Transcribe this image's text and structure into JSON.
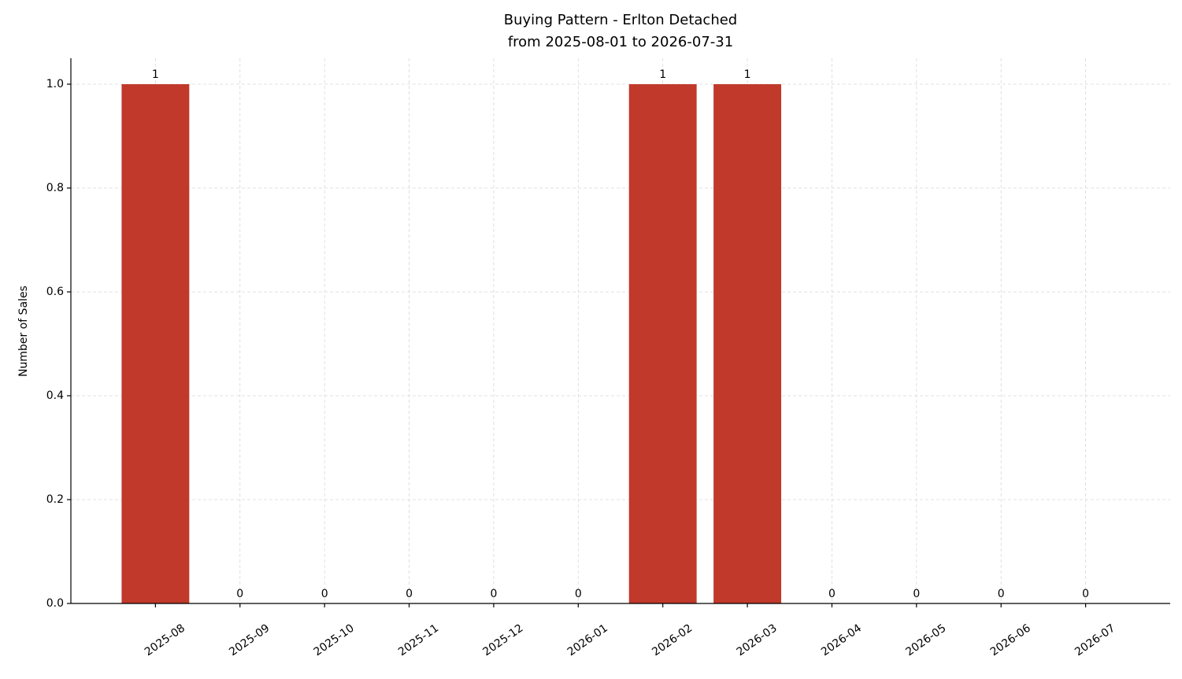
{
  "chart_data": {
    "type": "bar",
    "title": "Buying Pattern - Erlton Detached",
    "subtitle": "from 2025-08-01 to 2026-07-31",
    "y_label": "Number of Sales",
    "categories": [
      "2025-08",
      "2025-09",
      "2025-10",
      "2025-11",
      "2025-12",
      "2026-01",
      "2026-02",
      "2026-03",
      "2026-04",
      "2026-05",
      "2026-06",
      "2026-07"
    ],
    "values": [
      1,
      0,
      0,
      0,
      0,
      0,
      1,
      1,
      0,
      0,
      0,
      0
    ],
    "color": "#c0392b",
    "ylim": [
      0,
      1.05
    ],
    "yticks": [
      {
        "value": 0,
        "label": "0.0"
      },
      0.2,
      0.4,
      0.6,
      0.8,
      {
        "value": 1,
        "label": "1.0"
      }
    ],
    "grid": true
  }
}
